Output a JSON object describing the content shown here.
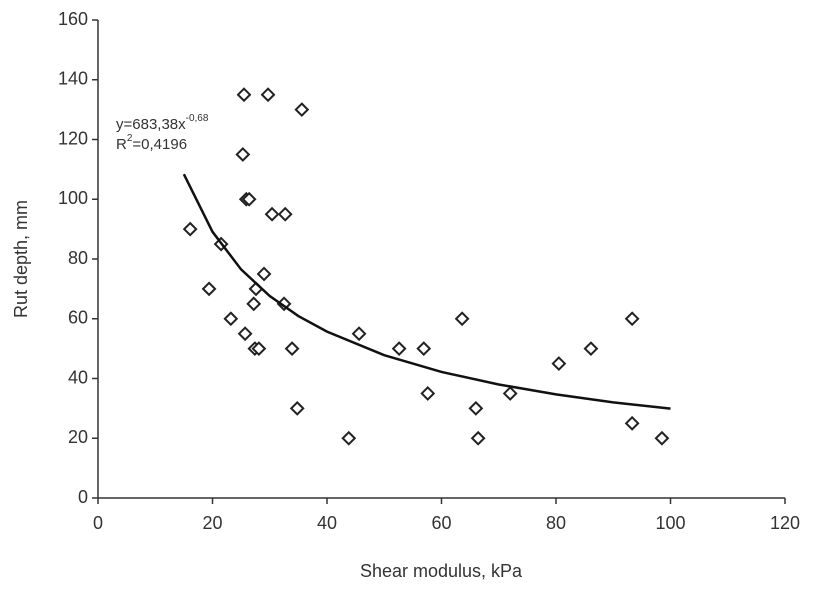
{
  "chart_data": {
    "type": "scatter",
    "xlabel": "Shear modulus, kPa",
    "ylabel": "Rut depth, mm",
    "xlim": [
      0,
      120
    ],
    "xticks": [
      0,
      20,
      40,
      60,
      80,
      100,
      120
    ],
    "ylim": [
      0,
      160
    ],
    "yticks": [
      0,
      20,
      40,
      60,
      80,
      100,
      120,
      140,
      160
    ],
    "series": [
      {
        "type": "scatter",
        "color": "#222222",
        "x": [
          16.1,
          19.4,
          21.5,
          23.2,
          25.5,
          25.3,
          25.9,
          26.4,
          25.7,
          27.2,
          27.6,
          27.4,
          28.1,
          29,
          29.7,
          30.4,
          32.7,
          32.5,
          33.9,
          34.8,
          35.6,
          43.8,
          45.6,
          52.6,
          56.9,
          57.6,
          63.6,
          66,
          66.4,
          72,
          80.5,
          86.1,
          93.3,
          93.3,
          98.5
        ],
        "values": [
          90,
          70,
          85,
          60,
          135,
          115,
          100,
          100,
          55,
          65,
          70,
          50,
          50,
          75,
          135,
          95,
          95,
          65,
          50,
          30,
          130,
          20,
          55,
          50,
          50,
          35,
          60,
          30,
          20,
          35,
          45,
          50,
          60,
          25,
          20
        ]
      },
      {
        "type": "line",
        "color": "#111111",
        "x": [
          15,
          20,
          25,
          30,
          35,
          40,
          50,
          60,
          70,
          80,
          90,
          100
        ],
        "values": [
          108.4,
          89.1,
          76.5,
          67.6,
          60.9,
          55.7,
          47.8,
          42.2,
          38.0,
          34.7,
          32.0,
          29.9
        ]
      }
    ],
    "annotation": {
      "equation": "y=683,38x",
      "exponent": "-0,68",
      "r": "R",
      "r_sup": "2",
      "r_value": "=0,4196"
    }
  }
}
